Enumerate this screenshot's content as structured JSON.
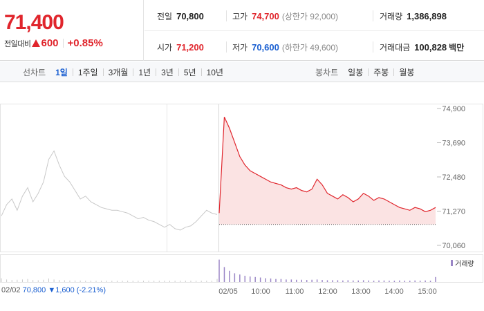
{
  "quote": {
    "price": "71,400",
    "change_label": "전일대비",
    "change_value": "600",
    "change_pct": "+0.85%"
  },
  "stats": {
    "prev_close": {
      "label": "전일",
      "value": "70,800"
    },
    "high": {
      "label": "고가",
      "value": "74,700",
      "sub": "(상한가 92,000)"
    },
    "volume": {
      "label": "거래량",
      "value": "1,386,898"
    },
    "open": {
      "label": "시가",
      "value": "71,200"
    },
    "low": {
      "label": "저가",
      "value": "70,600",
      "sub": "(하한가 49,600)"
    },
    "trade_value": {
      "label": "거래대금",
      "value": "100,828",
      "unit": "백만"
    }
  },
  "tabs": {
    "line_label": "선차트",
    "line_tabs": [
      "1일",
      "1주일",
      "3개월",
      "1년",
      "3년",
      "5년",
      "10년"
    ],
    "line_active": 0,
    "candle_label": "봉차트",
    "candle_tabs": [
      "일봉",
      "주봉",
      "월봉"
    ]
  },
  "colors": {
    "up": "#e0252c",
    "down": "#1a5fd1",
    "prev_day_line": "#c8c8c8",
    "volume_today": "#9a86c6",
    "volume_prev": "#c8c8c8"
  },
  "chart_data": {
    "type": "line",
    "y_ticks": [
      "74,900",
      "73,690",
      "72,480",
      "71,270",
      "70,060"
    ],
    "ylim": [
      70060,
      74900
    ],
    "x_ticks": [
      "02/02",
      "02/05",
      "10:00",
      "11:00",
      "12:00",
      "13:00",
      "14:00",
      "15:00"
    ],
    "prev_close": 70800,
    "series": [
      {
        "name": "02/02",
        "values": [
          71100,
          71500,
          71700,
          71300,
          71800,
          72100,
          71600,
          71900,
          72300,
          73100,
          73400,
          72900,
          72500,
          72300,
          72000,
          71700,
          71800,
          71600,
          71500,
          71400,
          71350,
          71300,
          71300,
          71250,
          71200,
          71100,
          71000,
          71050,
          70950,
          70900,
          70800,
          70700,
          70800,
          70650,
          70600,
          70700,
          70750,
          70900,
          71100,
          71300,
          71200,
          71150
        ]
      },
      {
        "name": "02/05",
        "values": [
          71200,
          74600,
          74200,
          73700,
          73200,
          72900,
          72700,
          72600,
          72500,
          72400,
          72300,
          72250,
          72200,
          72100,
          72050,
          72100,
          72000,
          71950,
          72050,
          72400,
          72200,
          71900,
          71800,
          71700,
          71850,
          71750,
          71600,
          71700,
          71900,
          71800,
          71650,
          71750,
          71700,
          71600,
          71500,
          71400,
          71350,
          71300,
          71400,
          71350,
          71250,
          71300,
          71400
        ]
      }
    ],
    "volume_label": "거래량",
    "volume_today": [
      0.9,
      0.6,
      0.45,
      0.35,
      0.3,
      0.25,
      0.22,
      0.2,
      0.18,
      0.15,
      0.14,
      0.12,
      0.12,
      0.1,
      0.1,
      0.09,
      0.09,
      0.08,
      0.09,
      0.1,
      0.08,
      0.07,
      0.07,
      0.07,
      0.06,
      0.07,
      0.06,
      0.06,
      0.07,
      0.06,
      0.05,
      0.06,
      0.06,
      0.05,
      0.05,
      0.06,
      0.05,
      0.05,
      0.06,
      0.05,
      0.06,
      0.05,
      0.2
    ],
    "volume_prev": [
      0.15,
      0.1,
      0.08,
      0.09,
      0.1,
      0.12,
      0.08,
      0.07,
      0.09,
      0.14,
      0.1,
      0.08,
      0.07,
      0.06,
      0.06,
      0.06,
      0.05,
      0.05,
      0.05,
      0.05,
      0.05,
      0.05,
      0.05,
      0.05,
      0.05,
      0.05,
      0.05,
      0.05,
      0.05,
      0.05,
      0.05,
      0.05,
      0.05,
      0.05,
      0.05,
      0.05,
      0.05,
      0.05,
      0.05,
      0.05,
      0.05,
      0.12
    ]
  },
  "footer": {
    "prev_date": "02/02",
    "prev_price": "70,800",
    "prev_change": "▼1,600",
    "prev_pct": "(-2.21%)"
  }
}
